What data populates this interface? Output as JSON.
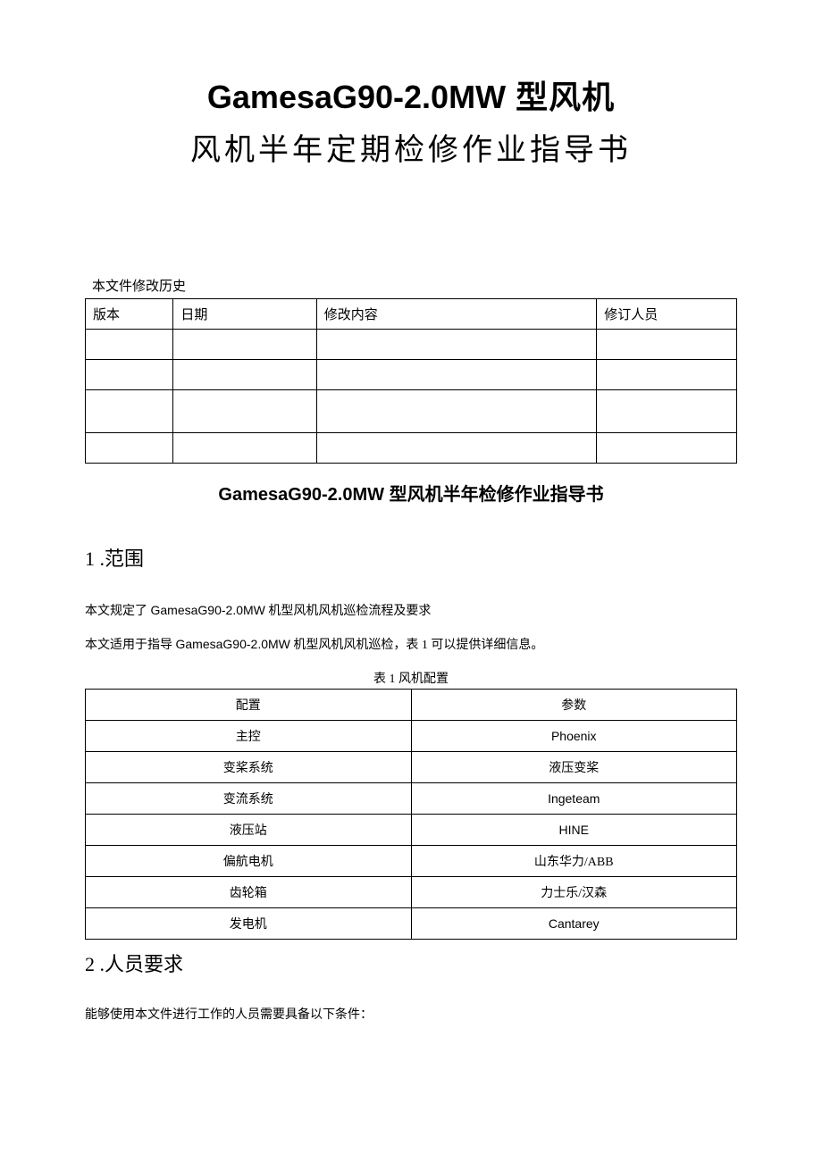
{
  "title": {
    "line1_latin": "GamesaG90-2.0MW",
    "line1_cn": " 型风机",
    "line2": "风机半年定期检修作业指导书"
  },
  "history": {
    "label": "本文件修改历史",
    "columns": [
      "版本",
      "日期",
      "修改内容",
      "修订人员"
    ],
    "rows": [
      [
        "",
        "",
        "",
        ""
      ],
      [
        "",
        "",
        "",
        ""
      ],
      [
        "",
        "",
        "",
        ""
      ],
      [
        "",
        "",
        "",
        ""
      ]
    ]
  },
  "subtitle": {
    "latin": "GamesaG90-2.0MW",
    "cn": " 型风机半年检修作业指导书"
  },
  "section1": {
    "heading": "1 .范围",
    "para1_a": "本文规定了 ",
    "para1_latin": "GamesaG90-2.0MW",
    "para1_b": " 机型风机风机巡检流程及要求",
    "para2_a": "本文适用于指导 ",
    "para2_latin": "GamesaG90-2.0MW",
    "para2_b": " 机型风机风机巡检，表 1 可以提供详细信息。"
  },
  "config": {
    "caption": "表 1 风机配置",
    "header": [
      "配置",
      "参数"
    ],
    "rows": [
      {
        "k": "主控",
        "v": "Phoenix",
        "latin": true
      },
      {
        "k": "变桨系统",
        "v": "液压变桨",
        "latin": false
      },
      {
        "k": "变流系统",
        "v": "Ingeteam",
        "latin": true
      },
      {
        "k": "液压站",
        "v": "HINE",
        "latin": true
      },
      {
        "k": "偏航电机",
        "v": "山东华力/ABB",
        "latin": false
      },
      {
        "k": "齿轮箱",
        "v": "力士乐/汉森",
        "latin": false
      },
      {
        "k": "发电机",
        "v": "Cantarey",
        "latin": true
      }
    ]
  },
  "section2": {
    "heading": "2 .人员要求",
    "para1": "能够使用本文件进行工作的人员需要具备以下条件："
  }
}
